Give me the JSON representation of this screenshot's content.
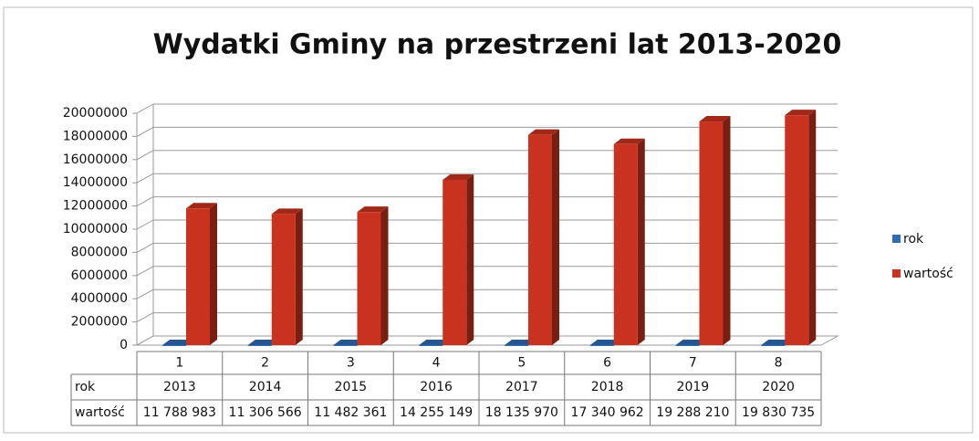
{
  "chart_data": {
    "type": "bar3d",
    "title": "Wydatki Gminy na przestrzeni lat 2013-2020",
    "categories": [
      "1",
      "2",
      "3",
      "4",
      "5",
      "6",
      "7",
      "8"
    ],
    "series": [
      {
        "name": "rok",
        "color": "#2f6cb3",
        "values": [
          2013,
          2014,
          2015,
          2016,
          2017,
          2018,
          2019,
          2020
        ]
      },
      {
        "name": "wartość",
        "color": "#c9321f",
        "values": [
          11788983,
          11306566,
          11482361,
          14255149,
          18135970,
          17340962,
          19288210,
          19830735
        ],
        "value_labels": [
          "11 788 983",
          "11 306 566",
          "11 482 361",
          "14 255 149",
          "18 135 970",
          "17 340 962",
          "19 288 210",
          "19 830 735"
        ]
      }
    ],
    "ylim": [
      0,
      20000000
    ],
    "yticks": [
      0,
      2000000,
      4000000,
      6000000,
      8000000,
      10000000,
      12000000,
      14000000,
      16000000,
      18000000,
      20000000
    ],
    "grid": true,
    "legend": "right",
    "data_table": true
  }
}
